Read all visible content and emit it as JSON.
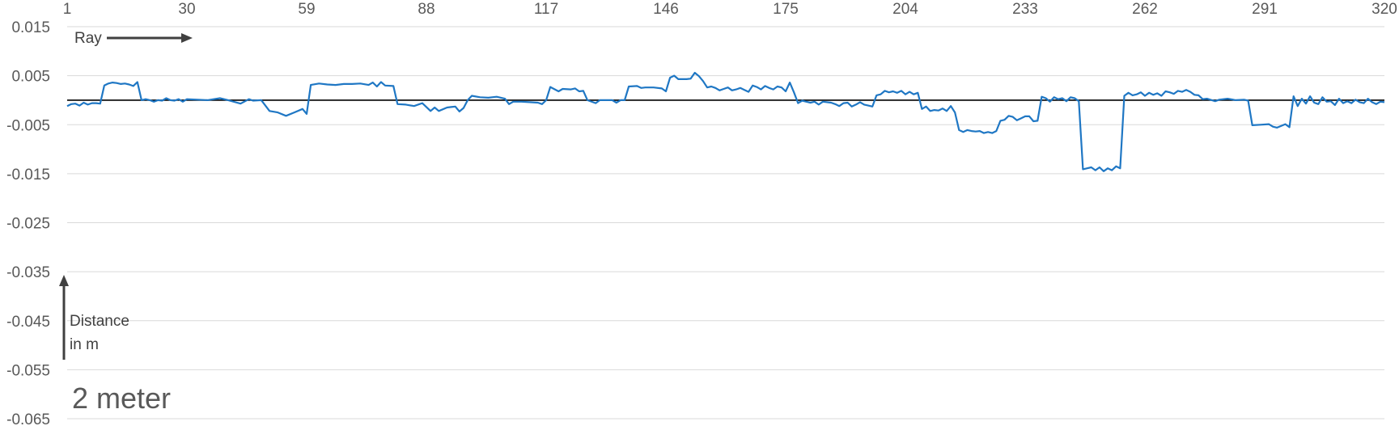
{
  "chart_data": {
    "type": "line",
    "x_ticks": [
      1,
      30,
      59,
      88,
      117,
      146,
      175,
      204,
      233,
      262,
      291,
      320
    ],
    "y_ticks": [
      0.015,
      0.005,
      -0.005,
      -0.015,
      -0.025,
      -0.035,
      -0.045,
      -0.055,
      -0.065
    ],
    "y_tick_labels": [
      "0.015",
      "0.005",
      "-0.005",
      "-0.015",
      "-0.025",
      "-0.035",
      "-0.045",
      "-0.055",
      "-0.065"
    ],
    "xlim": [
      1,
      320
    ],
    "ylim": [
      -0.065,
      0.015
    ],
    "grid": true,
    "reference_line": 0,
    "series": [
      {
        "color": "#1f77c4",
        "points": [
          [
            1,
            -0.0012
          ],
          [
            2,
            -0.0008
          ],
          [
            3,
            -0.0007
          ],
          [
            4,
            -0.0011
          ],
          [
            5,
            -0.0005
          ],
          [
            6,
            -0.0009
          ],
          [
            7,
            -0.0006
          ],
          [
            8,
            -0.0006
          ],
          [
            9,
            -0.0007
          ],
          [
            10,
            0.003
          ],
          [
            11,
            0.0034
          ],
          [
            12,
            0.0036
          ],
          [
            13,
            0.0035
          ],
          [
            14,
            0.0033
          ],
          [
            15,
            0.0034
          ],
          [
            16,
            0.0032
          ],
          [
            17,
            0.0029
          ],
          [
            18,
            0.0037
          ],
          [
            19,
            0.0
          ],
          [
            20,
            0.0002
          ],
          [
            21,
            0.0
          ],
          [
            22,
            -0.0003
          ],
          [
            23,
            0.0
          ],
          [
            24,
            -0.0001
          ],
          [
            25,
            0.0004
          ],
          [
            26,
            0.0
          ],
          [
            27,
            -0.0001
          ],
          [
            28,
            0.0002
          ],
          [
            29,
            -0.0003
          ],
          [
            30,
            0.0002
          ],
          [
            35,
            0.0
          ],
          [
            38,
            0.0004
          ],
          [
            40,
            0.0
          ],
          [
            43,
            -0.0007
          ],
          [
            45,
            0.0002
          ],
          [
            46,
            -0.0001
          ],
          [
            48,
            0.0
          ],
          [
            50,
            -0.0022
          ],
          [
            52,
            -0.0025
          ],
          [
            54,
            -0.0032
          ],
          [
            56,
            -0.0025
          ],
          [
            58,
            -0.0018
          ],
          [
            59,
            -0.0028
          ],
          [
            60,
            0.0031
          ],
          [
            62,
            0.0034
          ],
          [
            64,
            0.0032
          ],
          [
            66,
            0.0031
          ],
          [
            68,
            0.0033
          ],
          [
            70,
            0.0033
          ],
          [
            72,
            0.0034
          ],
          [
            74,
            0.0031
          ],
          [
            75,
            0.0036
          ],
          [
            76,
            0.0028
          ],
          [
            77,
            0.0037
          ],
          [
            78,
            0.003
          ],
          [
            80,
            0.0029
          ],
          [
            81,
            -0.0008
          ],
          [
            83,
            -0.0009
          ],
          [
            85,
            -0.0012
          ],
          [
            87,
            -0.0006
          ],
          [
            89,
            -0.0022
          ],
          [
            90,
            -0.0015
          ],
          [
            91,
            -0.0022
          ],
          [
            93,
            -0.0015
          ],
          [
            94,
            -0.0014
          ],
          [
            95,
            -0.0013
          ],
          [
            96,
            -0.0023
          ],
          [
            97,
            -0.0016
          ],
          [
            98,
            0.0
          ],
          [
            99,
            0.0009
          ],
          [
            101,
            0.0006
          ],
          [
            103,
            0.0005
          ],
          [
            105,
            0.0007
          ],
          [
            107,
            0.0003
          ],
          [
            108,
            -0.0008
          ],
          [
            109,
            -0.0003
          ],
          [
            111,
            -0.0003
          ],
          [
            113,
            -0.0004
          ],
          [
            115,
            -0.0005
          ],
          [
            116,
            -0.0008
          ],
          [
            117,
            0.0
          ],
          [
            118,
            0.0027
          ],
          [
            120,
            0.0018
          ],
          [
            121,
            0.0023
          ],
          [
            123,
            0.0022
          ],
          [
            124,
            0.0024
          ],
          [
            125,
            0.0018
          ],
          [
            126,
            0.0019
          ],
          [
            127,
            0.0
          ],
          [
            129,
            -0.0006
          ],
          [
            130,
            0.0
          ],
          [
            133,
            0.0
          ],
          [
            134,
            -0.0005
          ],
          [
            135,
            0.0
          ],
          [
            136,
            0.0
          ],
          [
            137,
            0.0028
          ],
          [
            139,
            0.0029
          ],
          [
            140,
            0.0025
          ],
          [
            141,
            0.0026
          ],
          [
            143,
            0.0026
          ],
          [
            145,
            0.0024
          ],
          [
            146,
            0.0018
          ],
          [
            147,
            0.0046
          ],
          [
            148,
            0.005
          ],
          [
            149,
            0.0043
          ],
          [
            151,
            0.0043
          ],
          [
            152,
            0.0044
          ],
          [
            153,
            0.0056
          ],
          [
            154,
            0.0049
          ],
          [
            155,
            0.0039
          ],
          [
            156,
            0.0026
          ],
          [
            157,
            0.0028
          ],
          [
            158,
            0.0025
          ],
          [
            159,
            0.002
          ],
          [
            160,
            0.0023
          ],
          [
            161,
            0.0026
          ],
          [
            162,
            0.002
          ],
          [
            163,
            0.0022
          ],
          [
            164,
            0.0025
          ],
          [
            165,
            0.0021
          ],
          [
            166,
            0.0017
          ],
          [
            167,
            0.003
          ],
          [
            168,
            0.0027
          ],
          [
            169,
            0.0022
          ],
          [
            170,
            0.0029
          ],
          [
            171,
            0.0025
          ],
          [
            172,
            0.0022
          ],
          [
            173,
            0.0028
          ],
          [
            174,
            0.0026
          ],
          [
            175,
            0.0018
          ],
          [
            176,
            0.0036
          ],
          [
            177,
            0.0016
          ],
          [
            178,
            -0.0006
          ],
          [
            179,
            -0.0001
          ],
          [
            180,
            -0.0003
          ],
          [
            181,
            -0.0005
          ],
          [
            182,
            -0.0003
          ],
          [
            183,
            -0.0009
          ],
          [
            184,
            -0.0003
          ],
          [
            186,
            -0.0005
          ],
          [
            187,
            -0.0008
          ],
          [
            188,
            -0.0012
          ],
          [
            189,
            -0.0006
          ],
          [
            190,
            -0.0005
          ],
          [
            191,
            -0.0013
          ],
          [
            192,
            -0.0009
          ],
          [
            193,
            -0.0004
          ],
          [
            194,
            -0.0009
          ],
          [
            195,
            -0.0011
          ],
          [
            196,
            -0.0013
          ],
          [
            197,
            0.001
          ],
          [
            198,
            0.0012
          ],
          [
            199,
            0.0019
          ],
          [
            200,
            0.0016
          ],
          [
            201,
            0.0018
          ],
          [
            202,
            0.0015
          ],
          [
            203,
            0.0019
          ],
          [
            204,
            0.0012
          ],
          [
            205,
            0.0017
          ],
          [
            206,
            0.0012
          ],
          [
            207,
            0.0015
          ],
          [
            208,
            -0.0018
          ],
          [
            209,
            -0.0013
          ],
          [
            210,
            -0.0022
          ],
          [
            211,
            -0.002
          ],
          [
            212,
            -0.0021
          ],
          [
            213,
            -0.0017
          ],
          [
            214,
            -0.0022
          ],
          [
            215,
            -0.0012
          ],
          [
            216,
            -0.0025
          ],
          [
            217,
            -0.0061
          ],
          [
            218,
            -0.0065
          ],
          [
            219,
            -0.0061
          ],
          [
            220,
            -0.0063
          ],
          [
            221,
            -0.0064
          ],
          [
            222,
            -0.0063
          ],
          [
            223,
            -0.0067
          ],
          [
            224,
            -0.0065
          ],
          [
            225,
            -0.0067
          ],
          [
            226,
            -0.0063
          ],
          [
            227,
            -0.0042
          ],
          [
            228,
            -0.004
          ],
          [
            229,
            -0.0032
          ],
          [
            230,
            -0.0034
          ],
          [
            231,
            -0.0041
          ],
          [
            232,
            -0.0037
          ],
          [
            233,
            -0.0033
          ],
          [
            234,
            -0.0033
          ],
          [
            235,
            -0.0043
          ],
          [
            236,
            -0.0042
          ],
          [
            237,
            0.0007
          ],
          [
            238,
            0.0004
          ],
          [
            239,
            -0.0003
          ],
          [
            240,
            0.0006
          ],
          [
            241,
            0.0002
          ],
          [
            242,
            0.0004
          ],
          [
            243,
            -0.0002
          ],
          [
            244,
            0.0006
          ],
          [
            245,
            0.0004
          ],
          [
            246,
            -0.0002
          ],
          [
            247,
            -0.0141
          ],
          [
            248,
            -0.0139
          ],
          [
            249,
            -0.0137
          ],
          [
            250,
            -0.0143
          ],
          [
            251,
            -0.0137
          ],
          [
            252,
            -0.0145
          ],
          [
            253,
            -0.0139
          ],
          [
            254,
            -0.0143
          ],
          [
            255,
            -0.0135
          ],
          [
            256,
            -0.0139
          ],
          [
            257,
            0.0009
          ],
          [
            258,
            0.0015
          ],
          [
            259,
            0.001
          ],
          [
            260,
            0.0012
          ],
          [
            261,
            0.0016
          ],
          [
            262,
            0.0009
          ],
          [
            263,
            0.0015
          ],
          [
            264,
            0.0011
          ],
          [
            265,
            0.0014
          ],
          [
            266,
            0.0009
          ],
          [
            267,
            0.0018
          ],
          [
            268,
            0.0016
          ],
          [
            269,
            0.0013
          ],
          [
            270,
            0.0019
          ],
          [
            271,
            0.0017
          ],
          [
            272,
            0.0021
          ],
          [
            273,
            0.0017
          ],
          [
            274,
            0.0011
          ],
          [
            275,
            0.001
          ],
          [
            276,
            0.0002
          ],
          [
            277,
            0.0003
          ],
          [
            279,
            -0.0002
          ],
          [
            280,
            0.0001
          ],
          [
            282,
            0.0003
          ],
          [
            284,
            0.0
          ],
          [
            286,
            0.0001
          ],
          [
            287,
            -0.0001
          ],
          [
            288,
            -0.0051
          ],
          [
            290,
            -0.005
          ],
          [
            292,
            -0.0049
          ],
          [
            293,
            -0.0054
          ],
          [
            294,
            -0.0056
          ],
          [
            296,
            -0.0049
          ],
          [
            297,
            -0.0055
          ],
          [
            298,
            0.0008
          ],
          [
            299,
            -0.0012
          ],
          [
            300,
            0.0003
          ],
          [
            301,
            -0.0007
          ],
          [
            302,
            0.0008
          ],
          [
            303,
            -0.0005
          ],
          [
            304,
            -0.0008
          ],
          [
            305,
            0.0006
          ],
          [
            306,
            -0.0003
          ],
          [
            307,
            -0.0002
          ],
          [
            308,
            -0.001
          ],
          [
            309,
            0.0003
          ],
          [
            310,
            -0.0006
          ],
          [
            311,
            -0.0002
          ],
          [
            312,
            -0.0006
          ],
          [
            313,
            0.0001
          ],
          [
            314,
            -0.0004
          ],
          [
            315,
            -0.0006
          ],
          [
            316,
            0.0003
          ],
          [
            317,
            -0.0004
          ],
          [
            318,
            -0.0008
          ],
          [
            319,
            -0.0003
          ],
          [
            320,
            -0.0004
          ]
        ]
      }
    ]
  },
  "annotations": {
    "ray_label": "Ray",
    "distance_label_line1": "Distance",
    "distance_label_line2": "in m",
    "subtitle": "2 meter"
  }
}
